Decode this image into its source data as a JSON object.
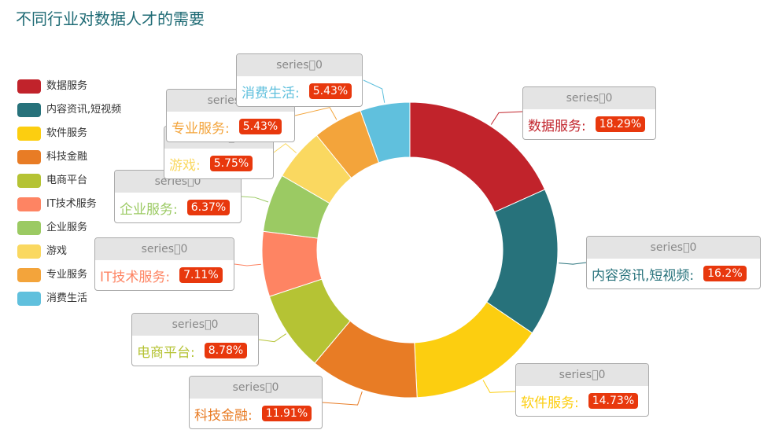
{
  "chart_data": {
    "type": "pie",
    "title": "不同行业对数据人才的需要",
    "legend_position": "left",
    "series_name": "series\u00000",
    "slices": [
      {
        "name": "数据服务",
        "value": 18.29,
        "label": "18.29%",
        "color": "#c1232b"
      },
      {
        "name": "内容资讯,短视频",
        "value": 16.2,
        "label": "16.2%",
        "color": "#27727b"
      },
      {
        "name": "软件服务",
        "value": 14.73,
        "label": "14.73%",
        "color": "#fcce10"
      },
      {
        "name": "科技金融",
        "value": 11.91,
        "label": "11.91%",
        "color": "#e87c25"
      },
      {
        "name": "电商平台",
        "value": 8.78,
        "label": "8.78%",
        "color": "#b5c334"
      },
      {
        "name": "IT技术服务",
        "value": 7.11,
        "label": "7.11%",
        "color": "#fe8463"
      },
      {
        "name": "企业服务",
        "value": 6.37,
        "label": "6.37%",
        "color": "#9bca63"
      },
      {
        "name": "游戏",
        "value": 5.75,
        "label": "5.75%",
        "color": "#fad860"
      },
      {
        "name": "专业服务",
        "value": 5.43,
        "label": "5.43%",
        "color": "#f3a43b"
      },
      {
        "name": "消费生活",
        "value": 5.43,
        "label": "5.43%",
        "color": "#60c0dd"
      }
    ]
  }
}
